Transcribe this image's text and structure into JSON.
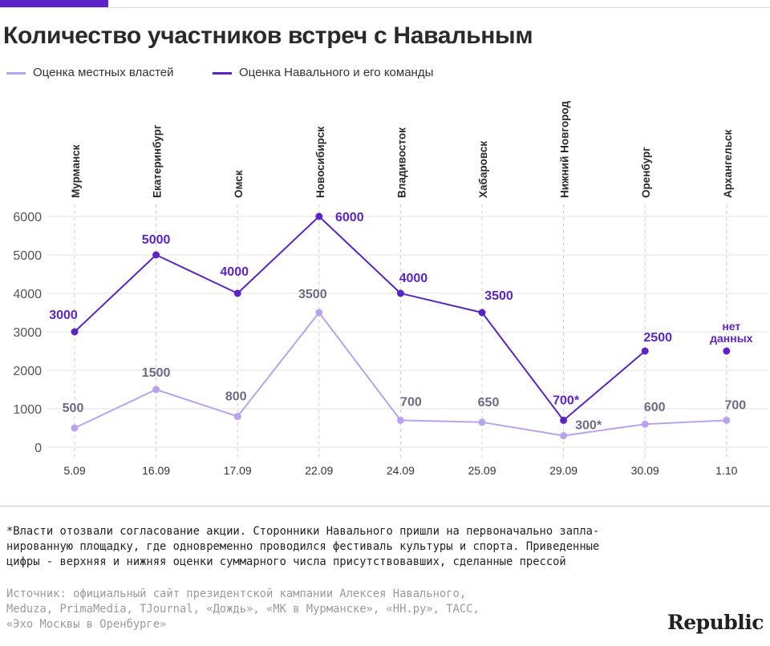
{
  "title": "Количество участников встреч с Навальным",
  "legend": [
    {
      "label": "Оценка местных властей",
      "color": "#b9a3ef"
    },
    {
      "label": "Оценка Навального и его команды",
      "color": "#5b24c7"
    }
  ],
  "footnote": "*Власти отозвали согласование акции. Сторонники Навального пришли на первоначально запла-\nнированную площадку, где одновременно проводился фестиваль культуры и спорта. Приведенные\nцифры - верхняя и нижняя оценки суммарного числа присутствовавших, сделанные прессой",
  "source": "Источник: официальный сайт президентской кампании Алексея Навального,\nMeduza, PrimaMedia, TJournal, «Дождь», «МК в Мурманске», «НН.ру», ТАСС,\n«Эхо Москвы в Оренбурге»",
  "logo": "Republic",
  "chart_data": {
    "type": "line",
    "categories": [
      "5.09",
      "16.09",
      "17.09",
      "22.09",
      "24.09",
      "25.09",
      "29.09",
      "30.09",
      "1.10"
    ],
    "cities": [
      "Мурманск",
      "Екатеринбург",
      "Омск",
      "Новосибирск",
      "Владивосток",
      "Хабаровск",
      "Нижний Новгород",
      "Оренбург",
      "Архангельск"
    ],
    "ylim": [
      0,
      6000
    ],
    "yticks": [
      0,
      1000,
      2000,
      3000,
      4000,
      5000,
      6000
    ],
    "series": [
      {
        "name": "Оценка местных властей",
        "color": "#b9a3ef",
        "label_color": "#6e6a86",
        "values": [
          500,
          1500,
          800,
          3500,
          700,
          650,
          300,
          600,
          700
        ],
        "labels": [
          "500",
          "1500",
          "800",
          "3500",
          "700",
          "650",
          "300*",
          "600",
          "700"
        ]
      },
      {
        "name": "Оценка Навального и его команды",
        "color": "#5b24c7",
        "label_color": "#5b24c7",
        "values": [
          3000,
          5000,
          4000,
          6000,
          4000,
          3500,
          700,
          2500,
          null
        ],
        "labels": [
          "3000",
          "5000",
          "4000",
          "6000",
          "4000",
          "3500",
          "700*",
          "2500",
          "нет\nданных"
        ]
      }
    ],
    "grid": true
  }
}
